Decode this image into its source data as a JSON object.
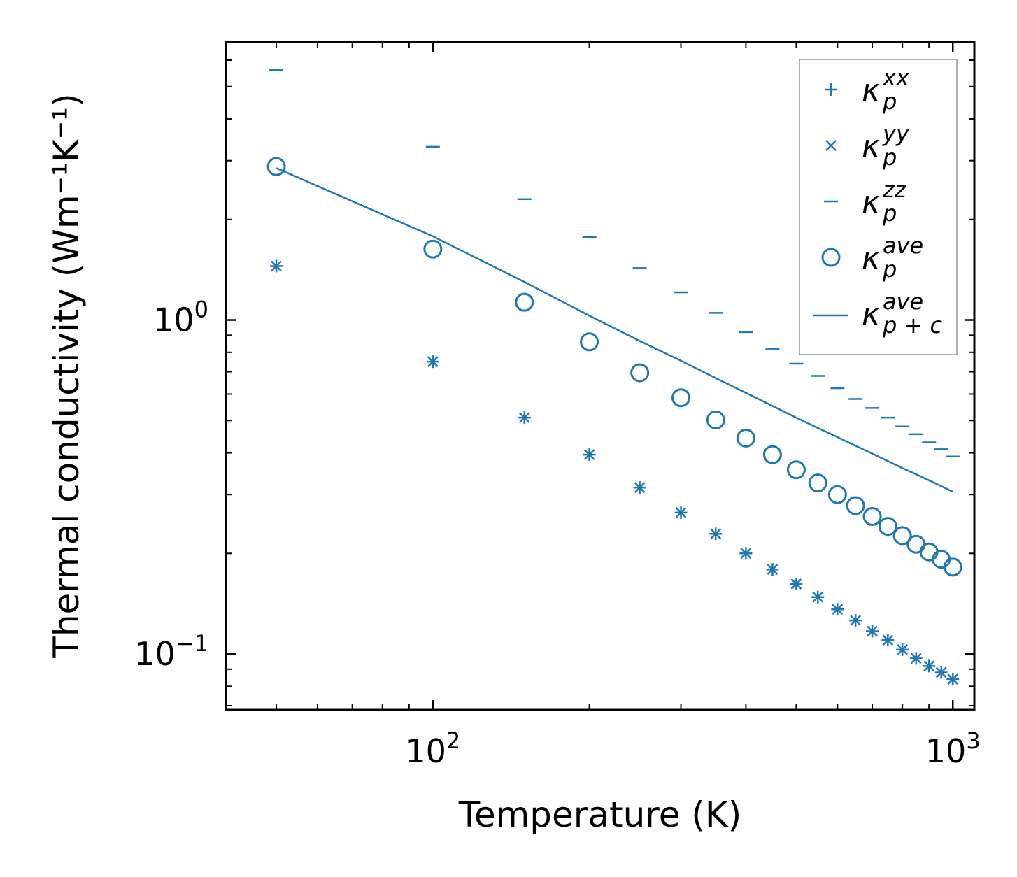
{
  "chart_data": {
    "type": "scatter",
    "xscale": "log",
    "yscale": "log",
    "xlabel": "Temperature (K)",
    "ylabel": "Thermal conductivity (Wm⁻¹K⁻¹)",
    "xlim": [
      40,
      1100
    ],
    "ylim": [
      0.068,
      6.8
    ],
    "x_ticks": [
      {
        "value": 100,
        "base": "10",
        "exp": "2"
      },
      {
        "value": 1000,
        "base": "10",
        "exp": "3"
      }
    ],
    "y_ticks": [
      {
        "value": 0.1,
        "base": "10",
        "exp": "−1"
      },
      {
        "value": 1,
        "base": "10",
        "exp": "0"
      }
    ],
    "legend_position": "top-right",
    "color": "#1f77b4",
    "series": [
      {
        "name": "kappa_p^xx",
        "symbol": "κ",
        "sub": "p",
        "sup": "xx",
        "marker": "plus",
        "x": [
          50,
          100,
          150,
          200,
          250,
          300,
          350,
          400,
          450,
          500,
          550,
          600,
          650,
          700,
          750,
          800,
          850,
          900,
          950,
          1000
        ],
        "y": [
          1.45,
          0.75,
          0.51,
          0.395,
          0.315,
          0.265,
          0.229,
          0.2,
          0.179,
          0.162,
          0.148,
          0.136,
          0.126,
          0.117,
          0.11,
          0.103,
          0.097,
          0.092,
          0.088,
          0.084
        ]
      },
      {
        "name": "kappa_p^yy",
        "symbol": "κ",
        "sub": "p",
        "sup": "yy",
        "marker": "x",
        "x": [
          50,
          100,
          150,
          200,
          250,
          300,
          350,
          400,
          450,
          500,
          550,
          600,
          650,
          700,
          750,
          800,
          850,
          900,
          950,
          1000
        ],
        "y": [
          1.45,
          0.75,
          0.51,
          0.395,
          0.315,
          0.265,
          0.229,
          0.2,
          0.179,
          0.162,
          0.148,
          0.136,
          0.126,
          0.117,
          0.11,
          0.103,
          0.097,
          0.092,
          0.088,
          0.084
        ]
      },
      {
        "name": "kappa_p^zz",
        "symbol": "κ",
        "sub": "p",
        "sup": "zz",
        "marker": "hline",
        "x": [
          50,
          100,
          150,
          200,
          250,
          300,
          350,
          400,
          450,
          500,
          550,
          600,
          650,
          700,
          750,
          800,
          850,
          900,
          950,
          1000
        ],
        "y": [
          5.6,
          3.3,
          2.3,
          1.77,
          1.43,
          1.21,
          1.05,
          0.92,
          0.82,
          0.74,
          0.68,
          0.625,
          0.58,
          0.545,
          0.51,
          0.48,
          0.455,
          0.43,
          0.41,
          0.39
        ]
      },
      {
        "name": "kappa_p^ave",
        "symbol": "κ",
        "sub": "p",
        "sup": "ave",
        "marker": "circle",
        "x": [
          50,
          100,
          150,
          200,
          250,
          300,
          350,
          400,
          450,
          500,
          550,
          600,
          650,
          700,
          750,
          800,
          850,
          900,
          950,
          1000
        ],
        "y": [
          2.88,
          1.63,
          1.13,
          0.86,
          0.695,
          0.585,
          0.502,
          0.443,
          0.395,
          0.356,
          0.325,
          0.3,
          0.278,
          0.258,
          0.241,
          0.226,
          0.213,
          0.202,
          0.192,
          0.182
        ]
      },
      {
        "name": "kappa_p+c^ave",
        "symbol": "κ",
        "sub": "p + c",
        "sup": "ave",
        "marker": "line",
        "x": [
          50,
          100,
          150,
          200,
          250,
          300,
          350,
          400,
          450,
          500,
          550,
          600,
          650,
          700,
          750,
          800,
          850,
          900,
          950,
          1000
        ],
        "y": [
          2.85,
          1.78,
          1.3,
          1.03,
          0.865,
          0.755,
          0.67,
          0.605,
          0.553,
          0.51,
          0.475,
          0.446,
          0.42,
          0.398,
          0.378,
          0.36,
          0.345,
          0.331,
          0.318,
          0.306
        ]
      }
    ]
  }
}
